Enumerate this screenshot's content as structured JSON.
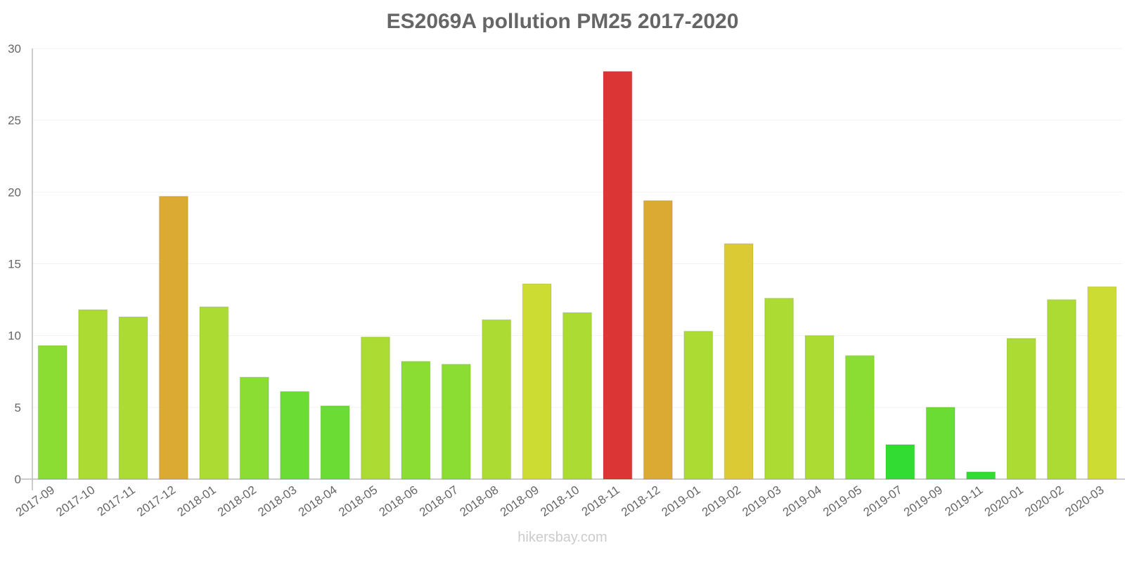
{
  "chart_data": {
    "type": "bar",
    "title": "ES2069A pollution PM25 2017-2020",
    "xlabel": "",
    "ylabel": "",
    "ylim": [
      0,
      30
    ],
    "yticks": [
      0,
      5,
      10,
      15,
      20,
      25,
      30
    ],
    "grid": true,
    "legend": null,
    "categories": [
      "2017-09",
      "2017-10",
      "2017-11",
      "2017-12",
      "2018-01",
      "2018-02",
      "2018-03",
      "2018-04",
      "2018-05",
      "2018-06",
      "2018-07",
      "2018-08",
      "2018-09",
      "2018-10",
      "2018-11",
      "2018-12",
      "2019-01",
      "2019-02",
      "2019-03",
      "2019-04",
      "2019-05",
      "2019-07",
      "2019-09",
      "2019-11",
      "2020-01",
      "2020-02",
      "2020-03"
    ],
    "values": [
      9.3,
      11.8,
      11.3,
      19.7,
      12.0,
      7.1,
      6.1,
      5.1,
      9.9,
      8.2,
      8.0,
      11.1,
      13.6,
      11.6,
      28.4,
      19.4,
      10.3,
      16.4,
      12.6,
      10.0,
      8.6,
      2.4,
      5.0,
      0.5,
      9.8,
      12.5,
      13.4
    ],
    "colors": [
      "#8bdc33",
      "#acdc33",
      "#acdc33",
      "#dbaa33",
      "#acdc33",
      "#8bdc33",
      "#6bdc33",
      "#6bdc33",
      "#acdc33",
      "#8bdc33",
      "#8bdc33",
      "#acdc33",
      "#cddc33",
      "#acdc33",
      "#db3535",
      "#dbaa33",
      "#acdc33",
      "#dbca33",
      "#acdc33",
      "#acdc33",
      "#8bdc33",
      "#33dc33",
      "#6bdc33",
      "#33dc33",
      "#acdc33",
      "#acdc33",
      "#cddc33"
    ]
  },
  "watermark": "hikersbay.com"
}
